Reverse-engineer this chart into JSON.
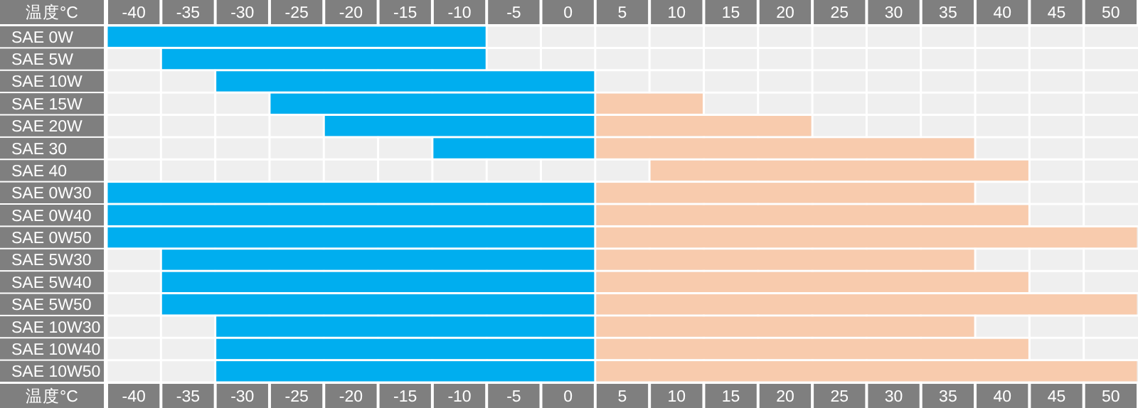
{
  "chart_data": {
    "type": "bar",
    "orientation": "horizontal",
    "xlabel": "温度°C",
    "x2label": "温度°C",
    "categories": [
      "SAE 0W",
      "SAE 5W",
      "SAE 10W",
      "SAE 15W",
      "SAE 20W",
      "SAE 30",
      "SAE 40",
      "SAE 0W30",
      "SAE 0W40",
      "SAE 0W50",
      "SAE 5W30",
      "SAE 5W40",
      "SAE 5W50",
      "SAE 10W30",
      "SAE 10W40",
      "SAE 10W50"
    ],
    "xlim": [
      -42.5,
      52.5
    ],
    "xticks": [
      -40,
      -35,
      -30,
      -25,
      -20,
      -15,
      -10,
      -5,
      0,
      5,
      10,
      15,
      20,
      25,
      30,
      35,
      40,
      45,
      50
    ],
    "x2lim": [
      -42.5,
      52.5
    ],
    "x2ticks": [
      -40,
      -35,
      -30,
      -25,
      -20,
      -15,
      -10,
      -5,
      0,
      5,
      10,
      15,
      20,
      25,
      30,
      35,
      40,
      45,
      50
    ],
    "series": [
      {
        "color": "#00aeef",
        "base": [
          -42.5,
          -37.5,
          -32.5,
          -27.5,
          -22.5,
          -12.5,
          null,
          -42.5,
          -42.5,
          -42.5,
          -37.5,
          -37.5,
          -37.5,
          -32.5,
          -32.5,
          -32.5
        ],
        "values": [
          35,
          30,
          35,
          30,
          25,
          15,
          null,
          45,
          45,
          45,
          40,
          40,
          40,
          35,
          35,
          35
        ]
      },
      {
        "color": "#f8cbad",
        "base": [
          null,
          null,
          null,
          2.5,
          2.5,
          2.5,
          7.5,
          2.5,
          2.5,
          2.5,
          2.5,
          2.5,
          2.5,
          2.5,
          2.5,
          2.5
        ],
        "values": [
          null,
          null,
          null,
          10,
          20,
          35,
          35,
          35,
          40,
          50,
          35,
          40,
          50,
          35,
          40,
          50
        ]
      }
    ]
  }
}
